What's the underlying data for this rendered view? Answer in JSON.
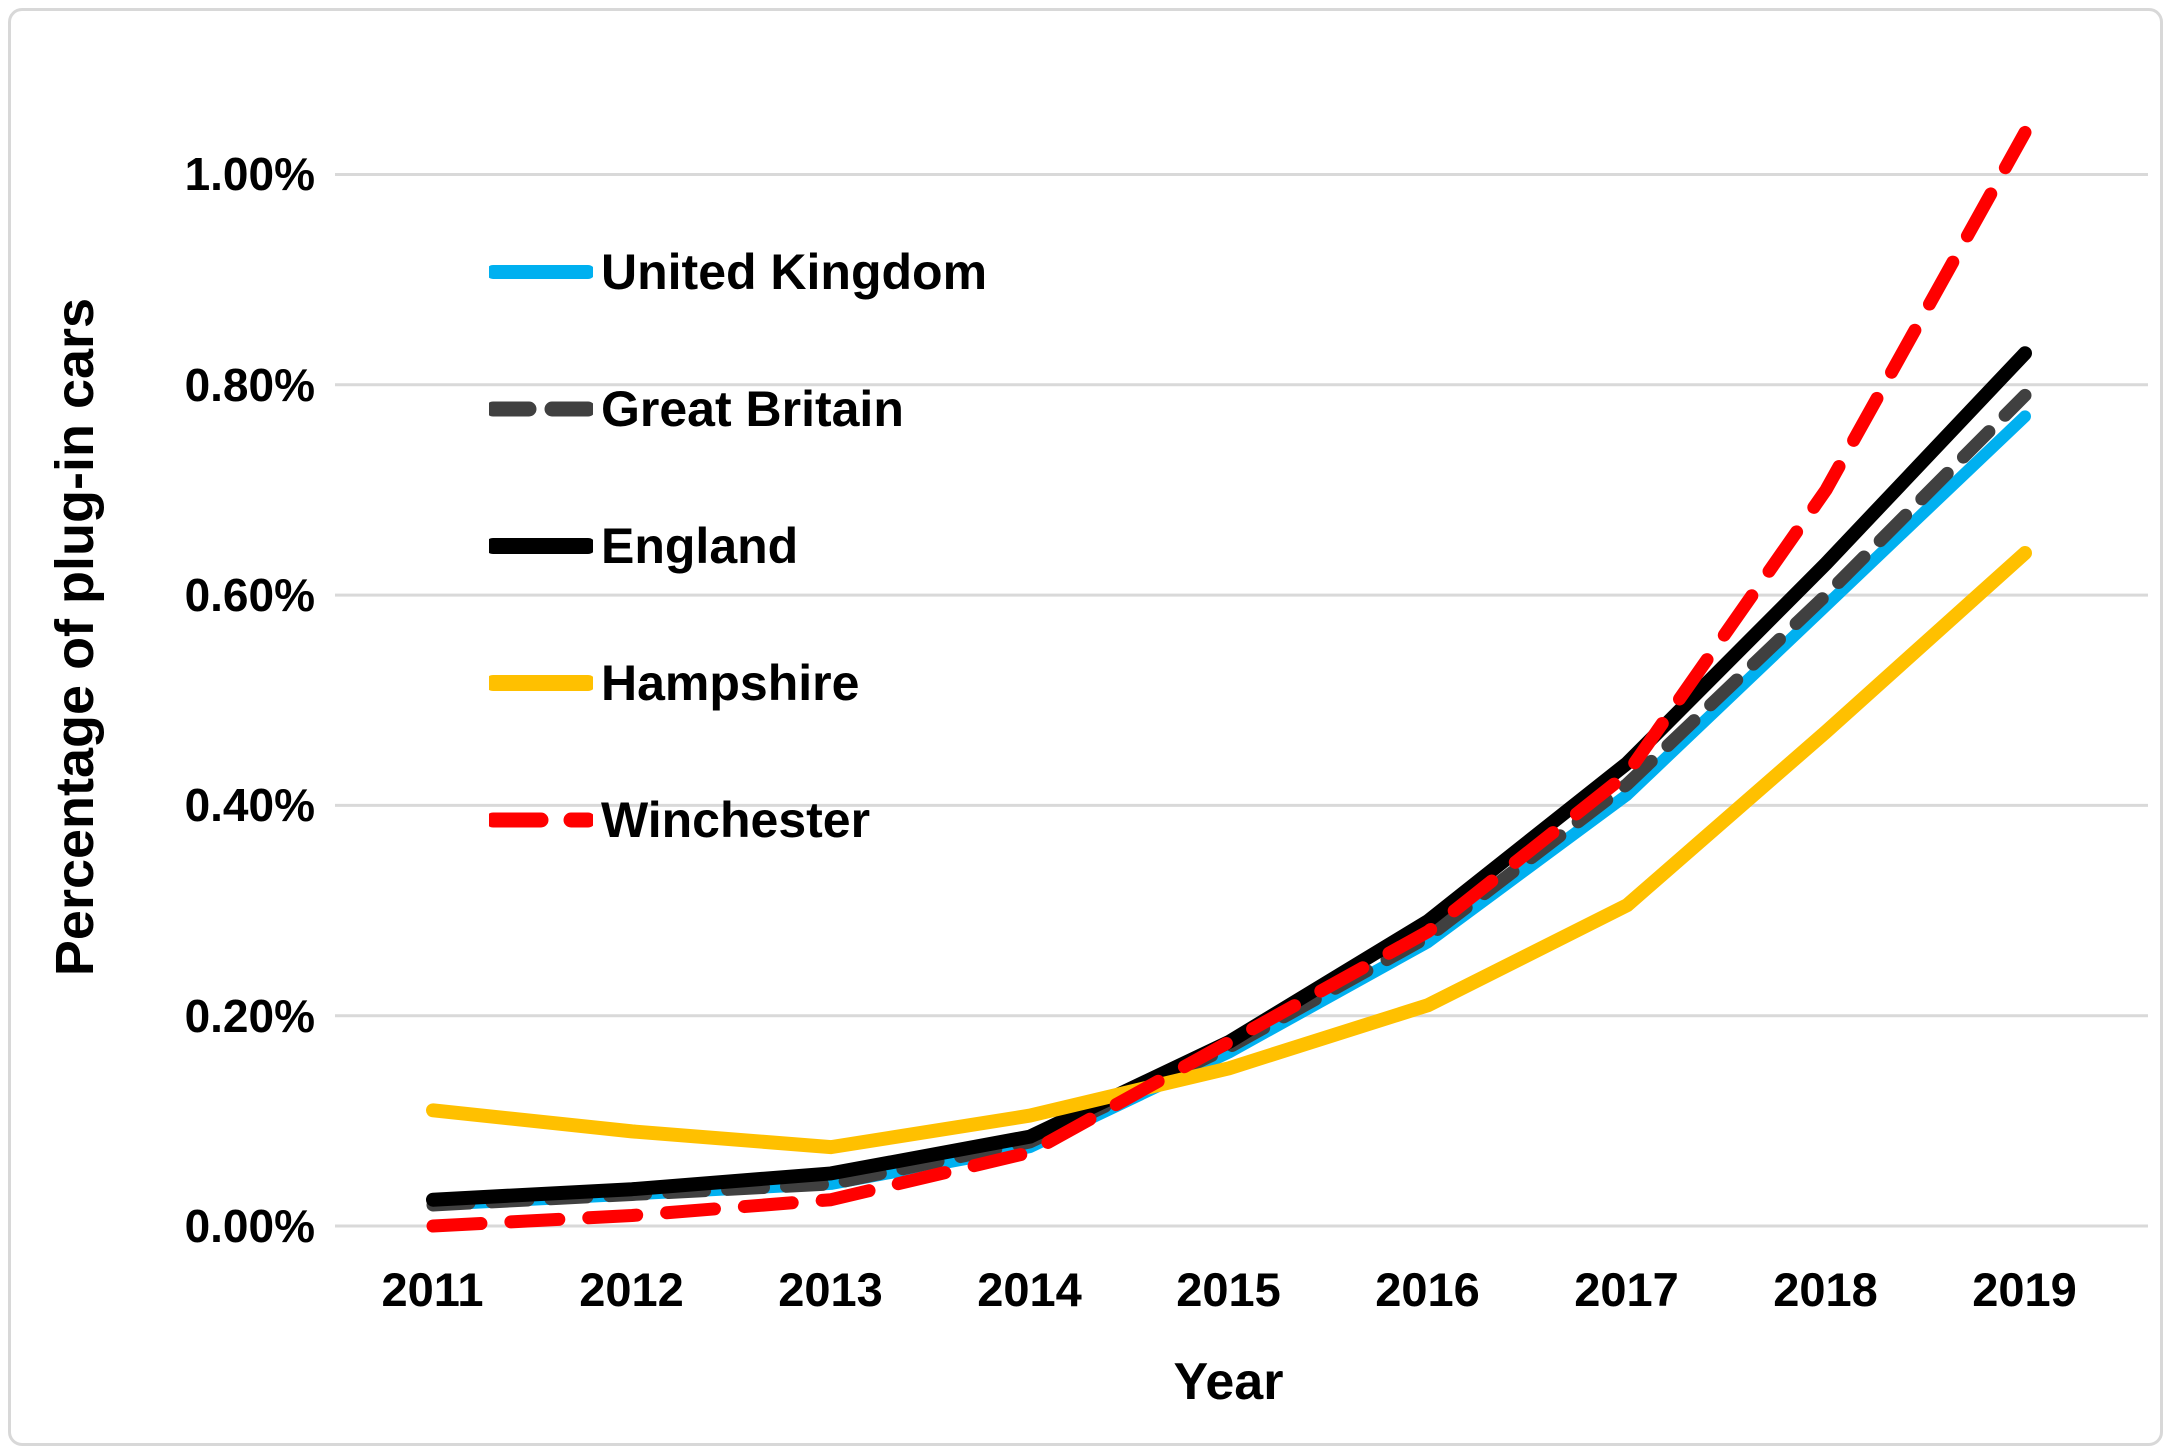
{
  "figure": {
    "background_color": "#ffffff",
    "border_color": "#d8d8d8",
    "text_color": "#000000",
    "gridline_color": "#d9d9d9"
  },
  "chart_data": {
    "type": "line",
    "title": "",
    "xlabel": "Year",
    "ylabel": "Percentage of plug-in cars",
    "categories": [
      "2011",
      "2012",
      "2013",
      "2014",
      "2015",
      "2016",
      "2017",
      "2018",
      "2019"
    ],
    "y_tick_labels_top_down": [
      "1.00%",
      "0.80%",
      "0.60%",
      "0.40%",
      "0.20%",
      "0.00%"
    ],
    "y_ticks": [
      0,
      0.2,
      0.4,
      0.6,
      0.8,
      1.0
    ],
    "ylim": [
      0,
      1.08
    ],
    "y_unit": "%",
    "grid": "horizontal",
    "legend_position": "upper-left-inside",
    "series": [
      {
        "name": "United Kingdom",
        "color": "#00B0F0",
        "line_style": "solid",
        "width": 12,
        "values": [
          0.02,
          0.03,
          0.04,
          0.075,
          0.165,
          0.27,
          0.41,
          0.59,
          0.77
        ]
      },
      {
        "name": "Great Britain",
        "color": "#404040",
        "line_style": "dashed",
        "dash": "36 23",
        "width": 13,
        "values": [
          0.02,
          0.03,
          0.04,
          0.08,
          0.17,
          0.275,
          0.42,
          0.6,
          0.79
        ]
      },
      {
        "name": "England",
        "color": "#000000",
        "line_style": "solid",
        "width": 14,
        "values": [
          0.025,
          0.035,
          0.05,
          0.085,
          0.175,
          0.29,
          0.44,
          0.63,
          0.83
        ]
      },
      {
        "name": "Hampshire",
        "color": "#FFC000",
        "line_style": "solid",
        "width": 14,
        "values": [
          0.11,
          0.09,
          0.075,
          0.105,
          0.15,
          0.21,
          0.305,
          0.47,
          0.64
        ]
      },
      {
        "name": "Winchester",
        "color": "#FF0000",
        "line_style": "dashed",
        "dash": "48 30",
        "width": 13,
        "values": [
          0.0,
          0.01,
          0.025,
          0.07,
          0.175,
          0.28,
          0.43,
          0.7,
          1.04
        ]
      }
    ]
  }
}
